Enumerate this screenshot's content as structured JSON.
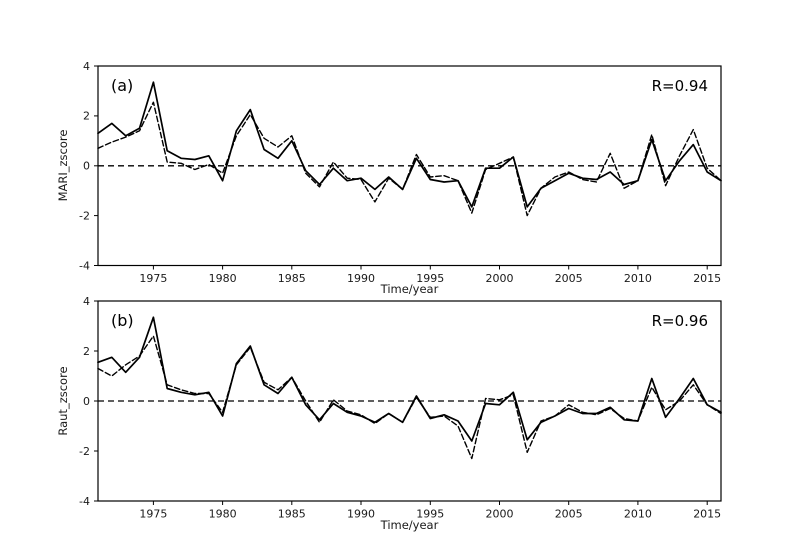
{
  "figure": {
    "background_color": "#ffffff",
    "line_color": "#000000"
  },
  "chart_data": [
    {
      "type": "line",
      "panel_label": "(a)",
      "annotation": "R=0.94",
      "xlabel": "Time/year",
      "ylabel": "MARI_zscore",
      "xlim": [
        1971,
        2016
      ],
      "ylim": [
        -4,
        4
      ],
      "xticks": [
        1975,
        1980,
        1985,
        1990,
        1995,
        2000,
        2005,
        2010,
        2015
      ],
      "yticks": [
        -4,
        -2,
        0,
        2,
        4
      ],
      "grid": false,
      "legend": "none",
      "zero_line": true,
      "x": [
        1971,
        1972,
        1973,
        1974,
        1975,
        1976,
        1977,
        1978,
        1979,
        1980,
        1981,
        1982,
        1983,
        1984,
        1985,
        1986,
        1987,
        1988,
        1989,
        1990,
        1991,
        1992,
        1993,
        1994,
        1995,
        1996,
        1997,
        1998,
        1999,
        2000,
        2001,
        2002,
        2003,
        2004,
        2005,
        2006,
        2007,
        2008,
        2009,
        2010,
        2011,
        2012,
        2013,
        2014,
        2015,
        2016
      ],
      "series": [
        {
          "name": "solid",
          "style": "solid",
          "values": [
            1.3,
            1.7,
            1.2,
            1.5,
            3.35,
            0.6,
            0.3,
            0.25,
            0.4,
            -0.6,
            1.4,
            2.25,
            0.65,
            0.3,
            1.0,
            -0.2,
            -0.75,
            -0.1,
            -0.6,
            -0.5,
            -0.95,
            -0.45,
            -0.95,
            0.3,
            -0.55,
            -0.65,
            -0.6,
            -1.65,
            -0.1,
            -0.1,
            0.35,
            -1.65,
            -0.9,
            -0.6,
            -0.3,
            -0.5,
            -0.55,
            -0.25,
            -0.75,
            -0.6,
            1.05,
            -0.6,
            0.2,
            0.85,
            -0.25,
            -0.6
          ]
        },
        {
          "name": "dashed",
          "style": "dashed",
          "values": [
            0.7,
            0.95,
            1.15,
            1.4,
            2.55,
            0.15,
            0.1,
            -0.15,
            0.05,
            -0.3,
            1.2,
            2.05,
            1.1,
            0.75,
            1.2,
            -0.3,
            -0.85,
            0.15,
            -0.5,
            -0.55,
            -1.45,
            -0.5,
            -0.95,
            0.45,
            -0.45,
            -0.4,
            -0.6,
            -1.9,
            -0.15,
            0.1,
            0.35,
            -2.0,
            -0.9,
            -0.45,
            -0.25,
            -0.55,
            -0.65,
            0.5,
            -0.9,
            -0.6,
            1.25,
            -0.8,
            0.4,
            1.45,
            -0.1,
            -0.6
          ]
        }
      ]
    },
    {
      "type": "line",
      "panel_label": "(b)",
      "annotation": "R=0.96",
      "xlabel": "Time/year",
      "ylabel": "Raut_zscore",
      "xlim": [
        1971,
        2016
      ],
      "ylim": [
        -4,
        4
      ],
      "xticks": [
        1975,
        1980,
        1985,
        1990,
        1995,
        2000,
        2005,
        2010,
        2015
      ],
      "yticks": [
        -4,
        -2,
        0,
        2,
        4
      ],
      "grid": false,
      "legend": "none",
      "zero_line": true,
      "x": [
        1971,
        1972,
        1973,
        1974,
        1975,
        1976,
        1977,
        1978,
        1979,
        1980,
        1981,
        1982,
        1983,
        1984,
        1985,
        1986,
        1987,
        1988,
        1989,
        1990,
        1991,
        1992,
        1993,
        1994,
        1995,
        1996,
        1997,
        1998,
        1999,
        2000,
        2001,
        2002,
        2003,
        2004,
        2005,
        2006,
        2007,
        2008,
        2009,
        2010,
        2011,
        2012,
        2013,
        2014,
        2015,
        2016
      ],
      "series": [
        {
          "name": "solid",
          "style": "solid",
          "values": [
            1.55,
            1.75,
            1.15,
            1.75,
            3.35,
            0.5,
            0.35,
            0.25,
            0.35,
            -0.6,
            1.5,
            2.2,
            0.65,
            0.3,
            0.95,
            -0.15,
            -0.75,
            -0.1,
            -0.45,
            -0.6,
            -0.85,
            -0.5,
            -0.85,
            0.2,
            -0.7,
            -0.55,
            -0.8,
            -1.6,
            -0.1,
            -0.15,
            0.35,
            -1.55,
            -0.85,
            -0.6,
            -0.3,
            -0.5,
            -0.5,
            -0.25,
            -0.75,
            -0.8,
            0.9,
            -0.65,
            0.1,
            0.9,
            -0.15,
            -0.45
          ]
        },
        {
          "name": "dashed",
          "style": "dashed",
          "values": [
            1.3,
            1.0,
            1.45,
            1.8,
            2.6,
            0.65,
            0.45,
            0.3,
            0.3,
            -0.45,
            1.45,
            2.15,
            0.75,
            0.45,
            0.95,
            0.0,
            -0.85,
            0.05,
            -0.4,
            -0.55,
            -0.9,
            -0.5,
            -0.85,
            0.15,
            -0.65,
            -0.6,
            -1.0,
            -2.3,
            0.1,
            0.05,
            0.25,
            -2.05,
            -0.8,
            -0.6,
            -0.15,
            -0.45,
            -0.55,
            -0.3,
            -0.7,
            -0.8,
            0.55,
            -0.35,
            0.0,
            0.65,
            -0.15,
            -0.5
          ]
        }
      ]
    }
  ]
}
